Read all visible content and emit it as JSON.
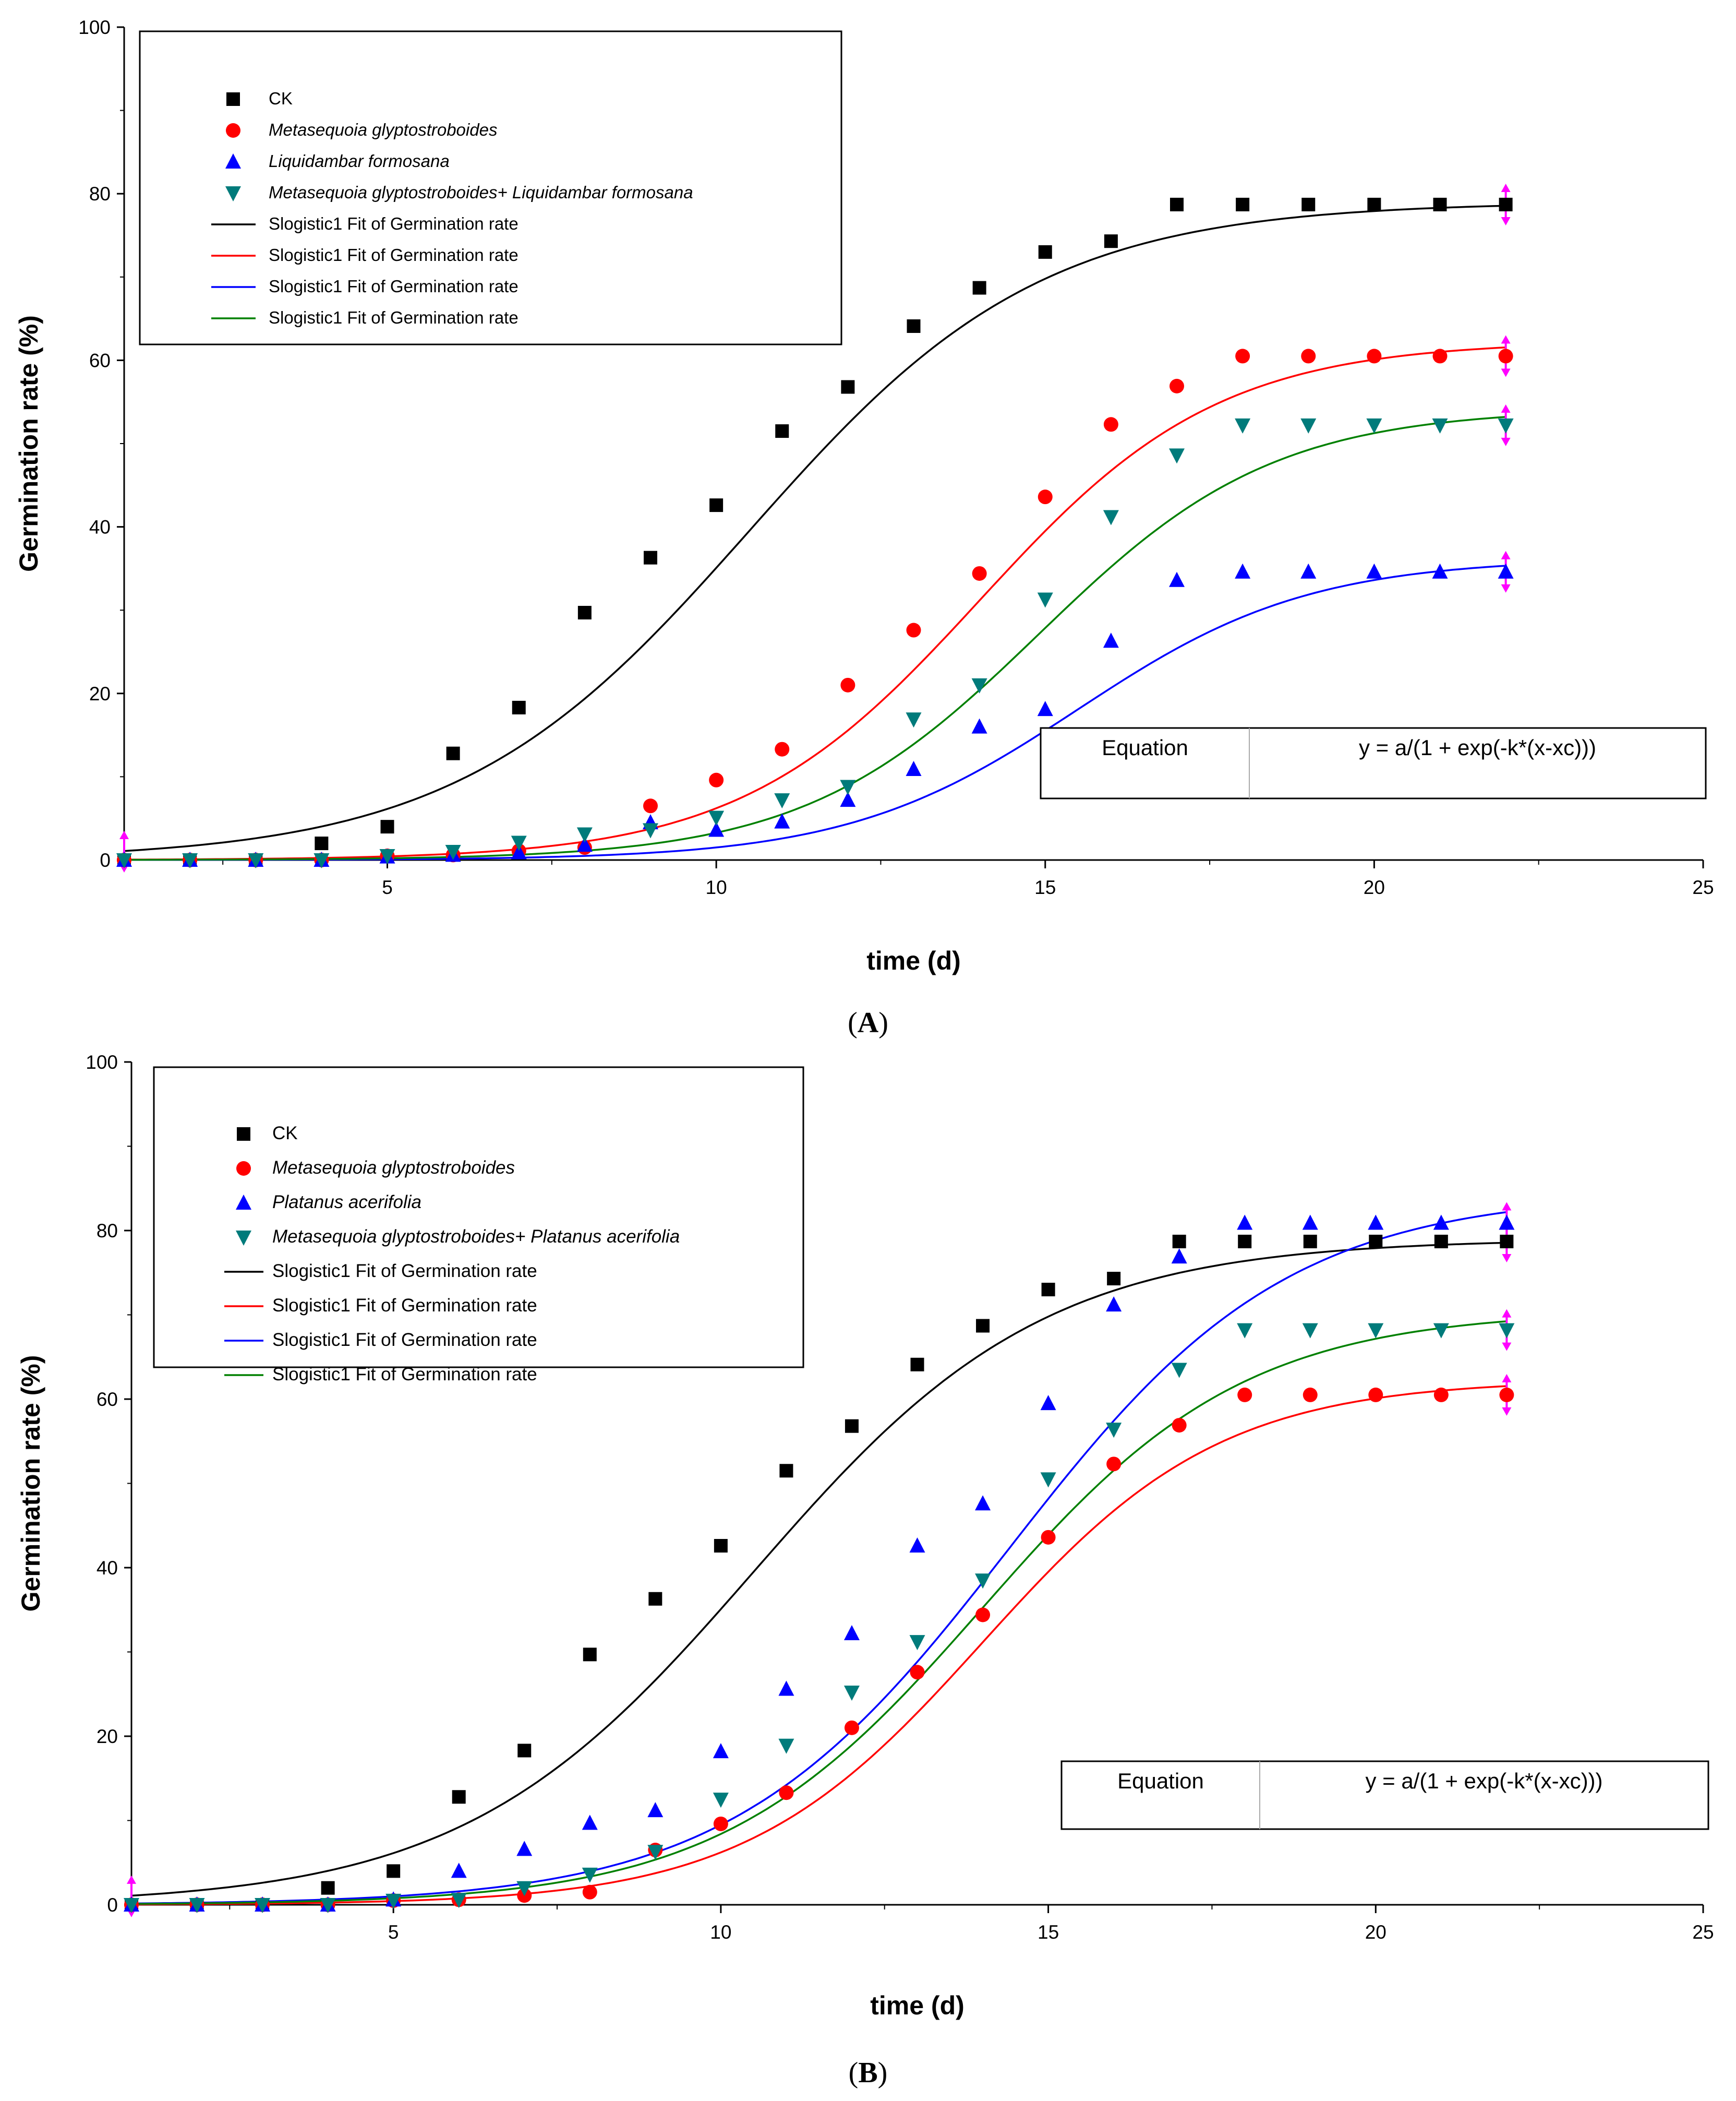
{
  "colors": {
    "black": "#000000",
    "red": "#ff0000",
    "blue": "#0000ff",
    "teal": "#007b7b",
    "green": "#008000",
    "magenta": "#ff00ff"
  },
  "chart_data": [
    {
      "type": "scatter",
      "panel_label": "A",
      "xlabel": "time (d)",
      "ylabel": "Germination rate (%)",
      "xlim": [
        1,
        25
      ],
      "ylim": [
        0,
        100
      ],
      "xticks": [
        5,
        10,
        15,
        20,
        25
      ],
      "yticks": [
        0,
        20,
        40,
        60,
        80,
        100
      ],
      "legend_position": "top-left",
      "equation_label": "Equation",
      "equation": "y = a/(1 + exp(-k*(x-xc)))",
      "x": [
        1,
        2,
        3,
        4,
        5,
        6,
        7,
        8,
        9,
        10,
        11,
        12,
        13,
        14,
        15,
        16,
        17,
        18,
        19,
        20,
        21,
        22
      ],
      "series": [
        {
          "name": "CK",
          "marker": "square",
          "color": "black",
          "values": [
            0,
            0,
            0,
            2,
            4,
            12.8,
            18.3,
            29.7,
            36.3,
            42.6,
            51.5,
            56.8,
            64.1,
            68.7,
            73,
            74.3,
            78.7,
            78.7,
            78.7,
            78.7,
            78.7,
            78.7
          ]
        },
        {
          "name": "Metasequoia glyptostroboides",
          "marker": "circle",
          "color": "red",
          "italic": true,
          "values": [
            0,
            0,
            0,
            0,
            0.5,
            0.6,
            1.1,
            1.5,
            6.5,
            9.6,
            13.3,
            21,
            27.6,
            34.4,
            43.6,
            52.3,
            56.9,
            60.5,
            60.5,
            60.5,
            60.5,
            60.5
          ]
        },
        {
          "name": "Liquidambar formosana",
          "marker": "triangle-up",
          "color": "blue",
          "italic": true,
          "values": [
            0,
            0,
            0,
            0,
            0.4,
            0.6,
            0.9,
            1.8,
            4.5,
            3.6,
            4.6,
            7.2,
            10.9,
            16,
            18.1,
            26.3,
            33.6,
            34.6,
            34.6,
            34.6,
            34.6,
            34.6
          ]
        },
        {
          "name": "Metasequoia glyptostroboides+ Liquidambar formosana",
          "marker": "triangle-down",
          "color": "teal",
          "italic": true,
          "values": [
            0,
            0,
            0,
            0,
            0.5,
            1,
            2.1,
            3.1,
            3.6,
            5.1,
            7.2,
            8.8,
            16.9,
            21,
            31.3,
            41.2,
            48.6,
            52.2,
            52.2,
            52.2,
            52.2,
            52.2
          ]
        }
      ],
      "fits": [
        {
          "name": "Slogistic1 Fit of Germination rate",
          "color": "black",
          "a": 79,
          "k": 0.45,
          "xc": 10.5
        },
        {
          "name": "Slogistic1 Fit of Germination rate",
          "color": "red",
          "a": 62.3,
          "k": 0.55,
          "xc": 14
        },
        {
          "name": "Slogistic1 Fit of Germination rate",
          "color": "blue",
          "a": 36.2,
          "k": 0.57,
          "xc": 15.5
        },
        {
          "name": "Slogistic1 Fit of Germination rate",
          "color": "green",
          "a": 54.2,
          "k": 0.56,
          "xc": 14.9
        }
      ]
    },
    {
      "type": "scatter",
      "panel_label": "B",
      "xlabel": "time (d)",
      "ylabel": "Germination rate (%)",
      "xlim": [
        1,
        25
      ],
      "ylim": [
        0,
        100
      ],
      "xticks": [
        5,
        10,
        15,
        20,
        25
      ],
      "yticks": [
        0,
        20,
        40,
        60,
        80,
        100
      ],
      "legend_position": "top-left",
      "equation_label": "Equation",
      "equation": "y = a/(1 + exp(-k*(x-xc)))",
      "x": [
        1,
        2,
        3,
        4,
        5,
        6,
        7,
        8,
        9,
        10,
        11,
        12,
        13,
        14,
        15,
        16,
        17,
        18,
        19,
        20,
        21,
        22
      ],
      "series": [
        {
          "name": "CK",
          "marker": "square",
          "color": "black",
          "values": [
            0,
            0,
            0,
            2,
            4,
            12.8,
            18.3,
            29.7,
            36.3,
            42.6,
            51.5,
            56.8,
            64.1,
            68.7,
            73,
            74.3,
            78.7,
            78.7,
            78.7,
            78.7,
            78.7,
            78.7
          ]
        },
        {
          "name": "Metasequoia glyptostroboides",
          "marker": "circle",
          "color": "red",
          "italic": true,
          "values": [
            0,
            0,
            0,
            0,
            0.5,
            0.6,
            1.1,
            1.5,
            6.5,
            9.6,
            13.3,
            21,
            27.6,
            34.4,
            43.6,
            52.3,
            56.9,
            60.5,
            60.5,
            60.5,
            60.5,
            60.5
          ]
        },
        {
          "name": "Platanus acerifolia",
          "marker": "triangle-up",
          "color": "blue",
          "italic": true,
          "values": [
            0,
            0,
            0,
            0,
            0.6,
            4,
            6.6,
            9.7,
            11.2,
            18.2,
            25.6,
            32.2,
            42.6,
            47.6,
            59.5,
            71.2,
            76.9,
            80.9,
            80.9,
            80.9,
            80.9,
            80.9
          ]
        },
        {
          "name": "Metasequoia glyptostroboides+ Platanus acerifolia",
          "marker": "triangle-down",
          "color": "teal",
          "italic": true,
          "values": [
            0,
            0,
            0,
            0,
            0.5,
            0.6,
            2,
            3.6,
            6.3,
            12.5,
            18.9,
            25.2,
            31.2,
            38.5,
            50.5,
            56.4,
            63.5,
            68.2,
            68.2,
            68.2,
            68.2,
            68.2
          ]
        }
      ],
      "fits": [
        {
          "name": "Slogistic1 Fit of Germination rate",
          "color": "black",
          "a": 79,
          "k": 0.45,
          "xc": 10.5
        },
        {
          "name": "Slogistic1 Fit of Germination rate",
          "color": "red",
          "a": 62.3,
          "k": 0.55,
          "xc": 14
        },
        {
          "name": "Slogistic1 Fit of Germination rate",
          "color": "blue",
          "a": 84.5,
          "k": 0.47,
          "xc": 14.4
        },
        {
          "name": "Slogistic1 Fit of Germination rate",
          "color": "green",
          "a": 70.5,
          "k": 0.5,
          "xc": 14
        }
      ]
    }
  ]
}
